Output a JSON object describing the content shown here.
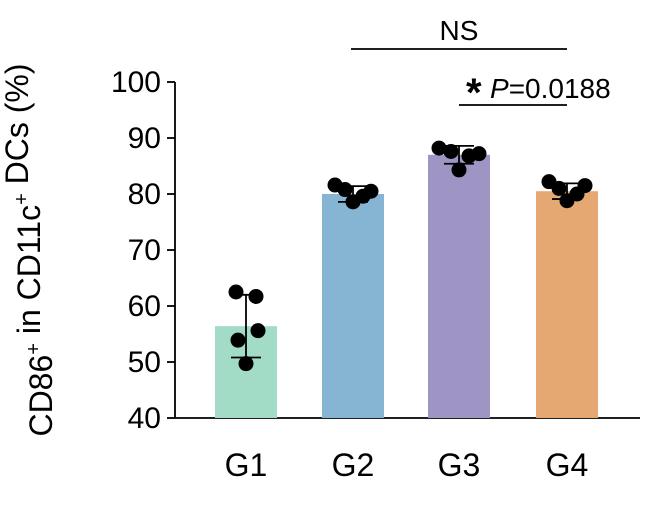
{
  "chart_data": {
    "type": "bar",
    "categories": [
      "G1",
      "G2",
      "G3",
      "G4"
    ],
    "values": [
      56.4,
      80.0,
      87.0,
      80.5
    ],
    "error": [
      5.6,
      1.4,
      1.6,
      1.4
    ],
    "points": [
      [
        62.5,
        61.7,
        55.6,
        53.9,
        49.7
      ],
      [
        81.6,
        80.8,
        80.5,
        79.6,
        78.6
      ],
      [
        88.2,
        87.6,
        87.2,
        86.8,
        84.3
      ],
      [
        82.2,
        81.5,
        81.0,
        80.0,
        78.8
      ]
    ],
    "colors": [
      "#a3dcc6",
      "#85b5d3",
      "#9e95c5",
      "#e6a873"
    ],
    "point_color": "#000000",
    "ylim": [
      40,
      100
    ],
    "yticks": [
      "40",
      "50",
      "60",
      "70",
      "80",
      "90",
      "100"
    ],
    "ylabel": {
      "parts": [
        {
          "t": "CD86",
          "sup": false
        },
        {
          "t": "+",
          "sup": true
        },
        {
          "t": " in CD11c",
          "sup": false
        },
        {
          "t": "+",
          "sup": true
        },
        {
          "t": " DCs (%)",
          "sup": false
        }
      ]
    },
    "annotations": [
      {
        "from": "G2",
        "to": "G4",
        "text": "NS"
      },
      {
        "from": "G3",
        "to": "G4",
        "star": "*",
        "text": "P = 0.0188"
      }
    ]
  }
}
